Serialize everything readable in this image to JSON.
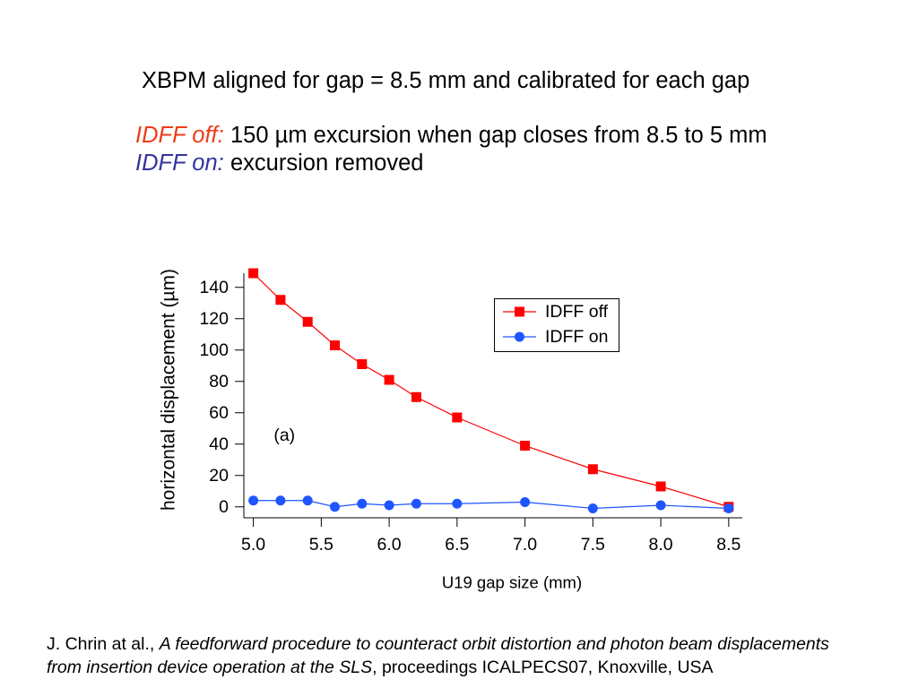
{
  "slide": {
    "title": "XBPM aligned for gap = 8.5 mm and calibrated for each gap",
    "idff_off": {
      "label": "IDFF off:",
      "text": "150 µm excursion when gap closes from 8.5 to 5 mm",
      "color": "#ee3b1a"
    },
    "idff_on": {
      "label": "IDFF on:",
      "text": "excursion removed",
      "color": "#33339f"
    }
  },
  "citation": {
    "authors": "J. Chrin at al.,",
    "title": "A feedforward procedure to counteract orbit distortion and photon beam displacements from insertion device operation at the SLS",
    "rest": ", proceedings ICALPECS07, Knoxville, USA"
  },
  "chart_data": {
    "type": "line",
    "xlabel": "U19 gap size (mm)",
    "ylabel": "horizontal displacement (µm)",
    "xlim": [
      4.93,
      8.6
    ],
    "ylim": [
      -7,
      149
    ],
    "x_ticks": [
      5.0,
      5.5,
      6.0,
      6.5,
      7.0,
      7.5,
      8.0,
      8.5
    ],
    "x_tick_labels": [
      "5.0",
      "5.5",
      "6.0",
      "6.5",
      "7.0",
      "7.5",
      "8.0",
      "8.5"
    ],
    "y_ticks": [
      0,
      20,
      40,
      60,
      80,
      100,
      120,
      140
    ],
    "y_tick_labels": [
      "0",
      "20",
      "40",
      "60",
      "80",
      "100",
      "120",
      "140"
    ],
    "x": [
      5.0,
      5.2,
      5.4,
      5.6,
      5.8,
      6.0,
      6.2,
      6.5,
      7.0,
      7.5,
      8.0,
      8.5
    ],
    "series": [
      {
        "name": "IDFF off",
        "color": "#ff0000",
        "marker": "square",
        "values": [
          149,
          132,
          118,
          103,
          91,
          81,
          70,
          57,
          39,
          24,
          13,
          0
        ]
      },
      {
        "name": "IDFF on",
        "color": "#1e55ff",
        "marker": "circle",
        "values": [
          4,
          4,
          4,
          0,
          2,
          1,
          2,
          2,
          3,
          -1,
          1,
          -1
        ]
      }
    ],
    "grid": false,
    "legend": "top-right",
    "annotations": [
      "(a)"
    ]
  }
}
